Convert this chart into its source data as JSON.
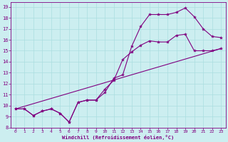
{
  "xlabel": "Windchill (Refroidissement éolien,°C)",
  "bg_color": "#cceef0",
  "line_color": "#800080",
  "grid_color": "#aadddf",
  "xlim": [
    -0.5,
    23.5
  ],
  "ylim": [
    8,
    19.4
  ],
  "xticks": [
    0,
    1,
    2,
    3,
    4,
    5,
    6,
    7,
    8,
    9,
    10,
    11,
    12,
    13,
    14,
    15,
    16,
    17,
    18,
    19,
    20,
    21,
    22,
    23
  ],
  "yticks": [
    8,
    9,
    10,
    11,
    12,
    13,
    14,
    15,
    16,
    17,
    18,
    19
  ],
  "line1_x": [
    0,
    1,
    2,
    3,
    4,
    5,
    6,
    7,
    8,
    9,
    10,
    11,
    12,
    13,
    14,
    15,
    16,
    17,
    18,
    19,
    20,
    21,
    22,
    23
  ],
  "line1_y": [
    9.7,
    9.7,
    9.1,
    9.5,
    9.7,
    9.3,
    8.5,
    10.3,
    10.5,
    10.5,
    11.2,
    12.5,
    12.8,
    15.4,
    17.2,
    18.3,
    18.3,
    18.3,
    18.5,
    18.9,
    18.1,
    17.0,
    16.3,
    16.2
  ],
  "line2_x": [
    0,
    1,
    2,
    3,
    4,
    5,
    6,
    7,
    8,
    9,
    10,
    11,
    12,
    13,
    14,
    15,
    16,
    17,
    18,
    19,
    20,
    21,
    22,
    23
  ],
  "line2_y": [
    9.7,
    9.7,
    9.1,
    9.5,
    9.7,
    9.3,
    8.5,
    10.3,
    10.5,
    10.5,
    11.5,
    12.3,
    14.2,
    14.9,
    15.5,
    15.9,
    15.8,
    15.8,
    16.4,
    16.5,
    15.0,
    15.0,
    15.0,
    15.2
  ],
  "line3_x": [
    0,
    23
  ],
  "line3_y": [
    9.7,
    15.2
  ]
}
